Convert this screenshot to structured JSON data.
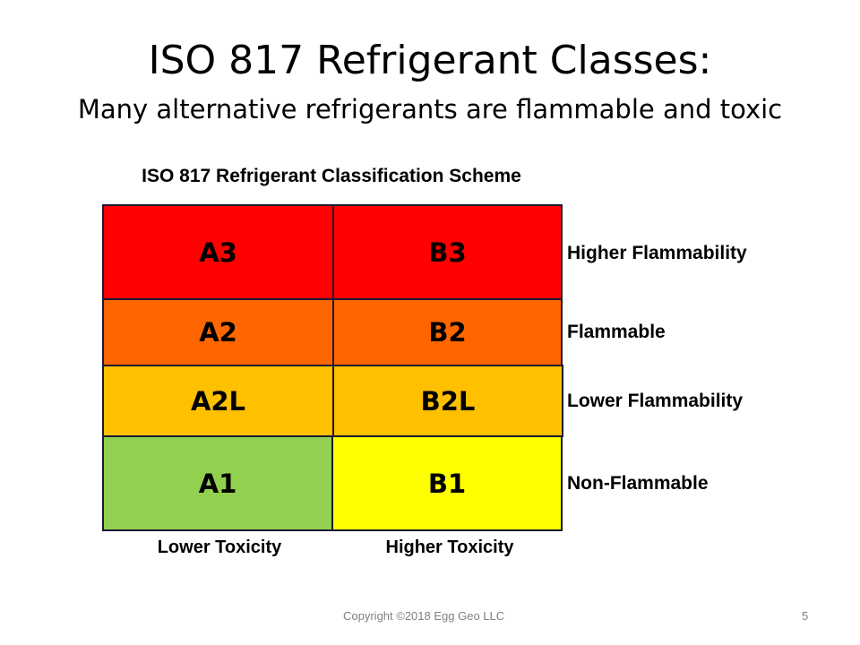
{
  "title": "ISO 817 Refrigerant Classes:",
  "subtitle": "Many alternative refrigerants are flammable and toxic",
  "scheme": {
    "title": "ISO 817 Refrigerant Classification Scheme",
    "cells": {
      "a3": {
        "label": "A3",
        "color": "#ff0000"
      },
      "b3": {
        "label": "B3",
        "color": "#ff0000"
      },
      "a2": {
        "label": "A2",
        "color": "#ff6600"
      },
      "b2": {
        "label": "B2",
        "color": "#ff6600"
      },
      "a2l": {
        "label": "A2L",
        "color": "#ffc000"
      },
      "b2l": {
        "label": "B2L",
        "color": "#ffc000"
      },
      "a1": {
        "label": "A1",
        "color": "#92d050"
      },
      "b1": {
        "label": "B1",
        "color": "#ffff00"
      }
    },
    "row_labels": {
      "higher": "Higher Flammability",
      "flammable": "Flammable",
      "lower": "Lower Flammability",
      "non": "Non-Flammable"
    },
    "column_labels": {
      "lower_toxicity": "Lower Toxicity",
      "higher_toxicity": "Higher Toxicity"
    }
  },
  "footer": {
    "copyright": "Copyright ©2018 Egg Geo LLC",
    "page_number": "5"
  }
}
